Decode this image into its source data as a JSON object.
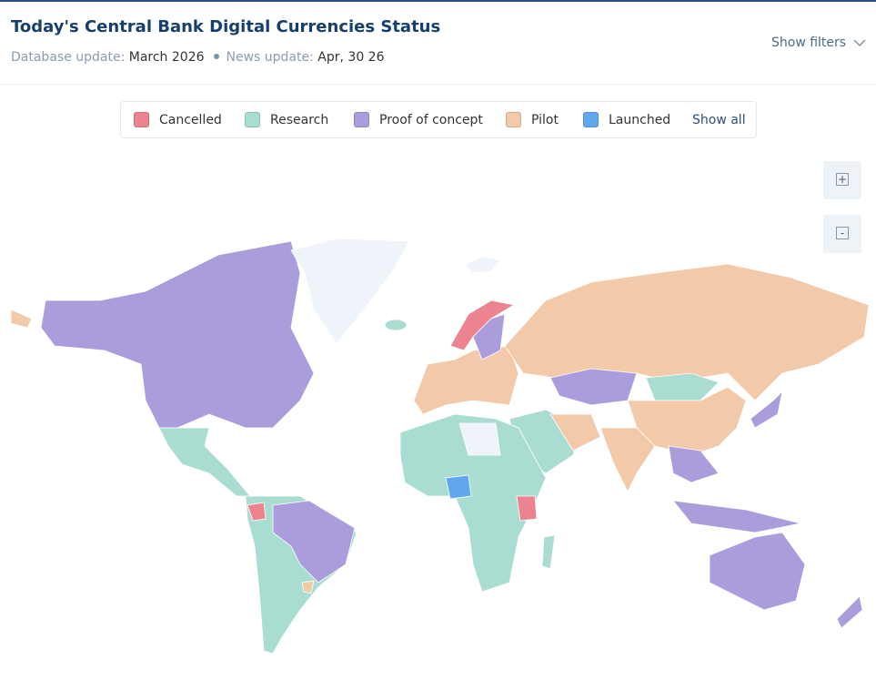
{
  "header": {
    "title": "Today's Central Bank Digital Currencies Status",
    "database_label": "Database update:",
    "database_value": "March 2026",
    "news_label": "News update:",
    "news_value": "Apr, 30 26",
    "filters": "Show filters"
  },
  "legend": {
    "items": [
      {
        "name": "Cancelled",
        "color": "#ec8490"
      },
      {
        "name": "Research",
        "color": "#aaddd1"
      },
      {
        "name": "Proof of concept",
        "color": "#ab9cdb"
      },
      {
        "name": "Pilot",
        "color": "#f3caa9"
      },
      {
        "name": "Launched",
        "color": "#62a6f0"
      }
    ],
    "show_all": "Show all"
  },
  "zoom": {
    "in": "+",
    "out": "-"
  }
}
